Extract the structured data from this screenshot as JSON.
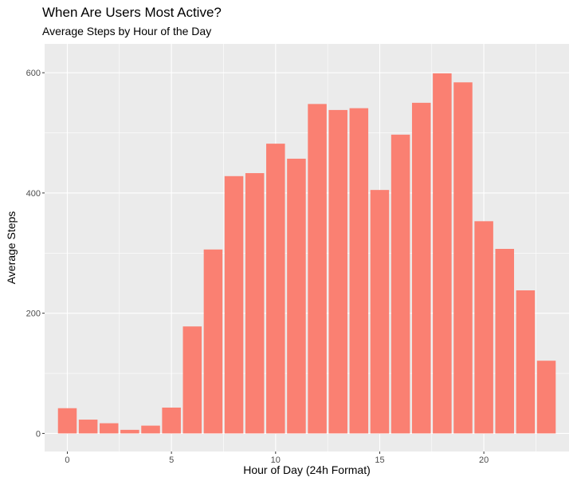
{
  "chart_data": {
    "type": "bar",
    "title": "When Are Users Most Active?",
    "subtitle": "Average Steps by Hour of the Day",
    "xlabel": "Hour of Day (24h Format)",
    "ylabel": "Average Steps",
    "x_ticks": [
      0,
      5,
      10,
      15,
      20
    ],
    "y_ticks": [
      0,
      200,
      400,
      600
    ],
    "xlim": [
      -1.09,
      24.09
    ],
    "ylim": [
      -30,
      648
    ],
    "categories": [
      0,
      1,
      2,
      3,
      4,
      5,
      6,
      7,
      8,
      9,
      10,
      11,
      12,
      13,
      14,
      15,
      16,
      17,
      18,
      19,
      20,
      21,
      22,
      23
    ],
    "values": [
      42,
      23,
      17,
      6,
      13,
      43,
      178,
      306,
      428,
      433,
      482,
      457,
      548,
      538,
      541,
      405,
      497,
      550,
      599,
      584,
      353,
      307,
      238,
      121
    ],
    "bar_color": "#fa8072",
    "panel_background": "#ebebeb",
    "grid_color": "#ffffff",
    "grid": true,
    "legend": "none"
  }
}
